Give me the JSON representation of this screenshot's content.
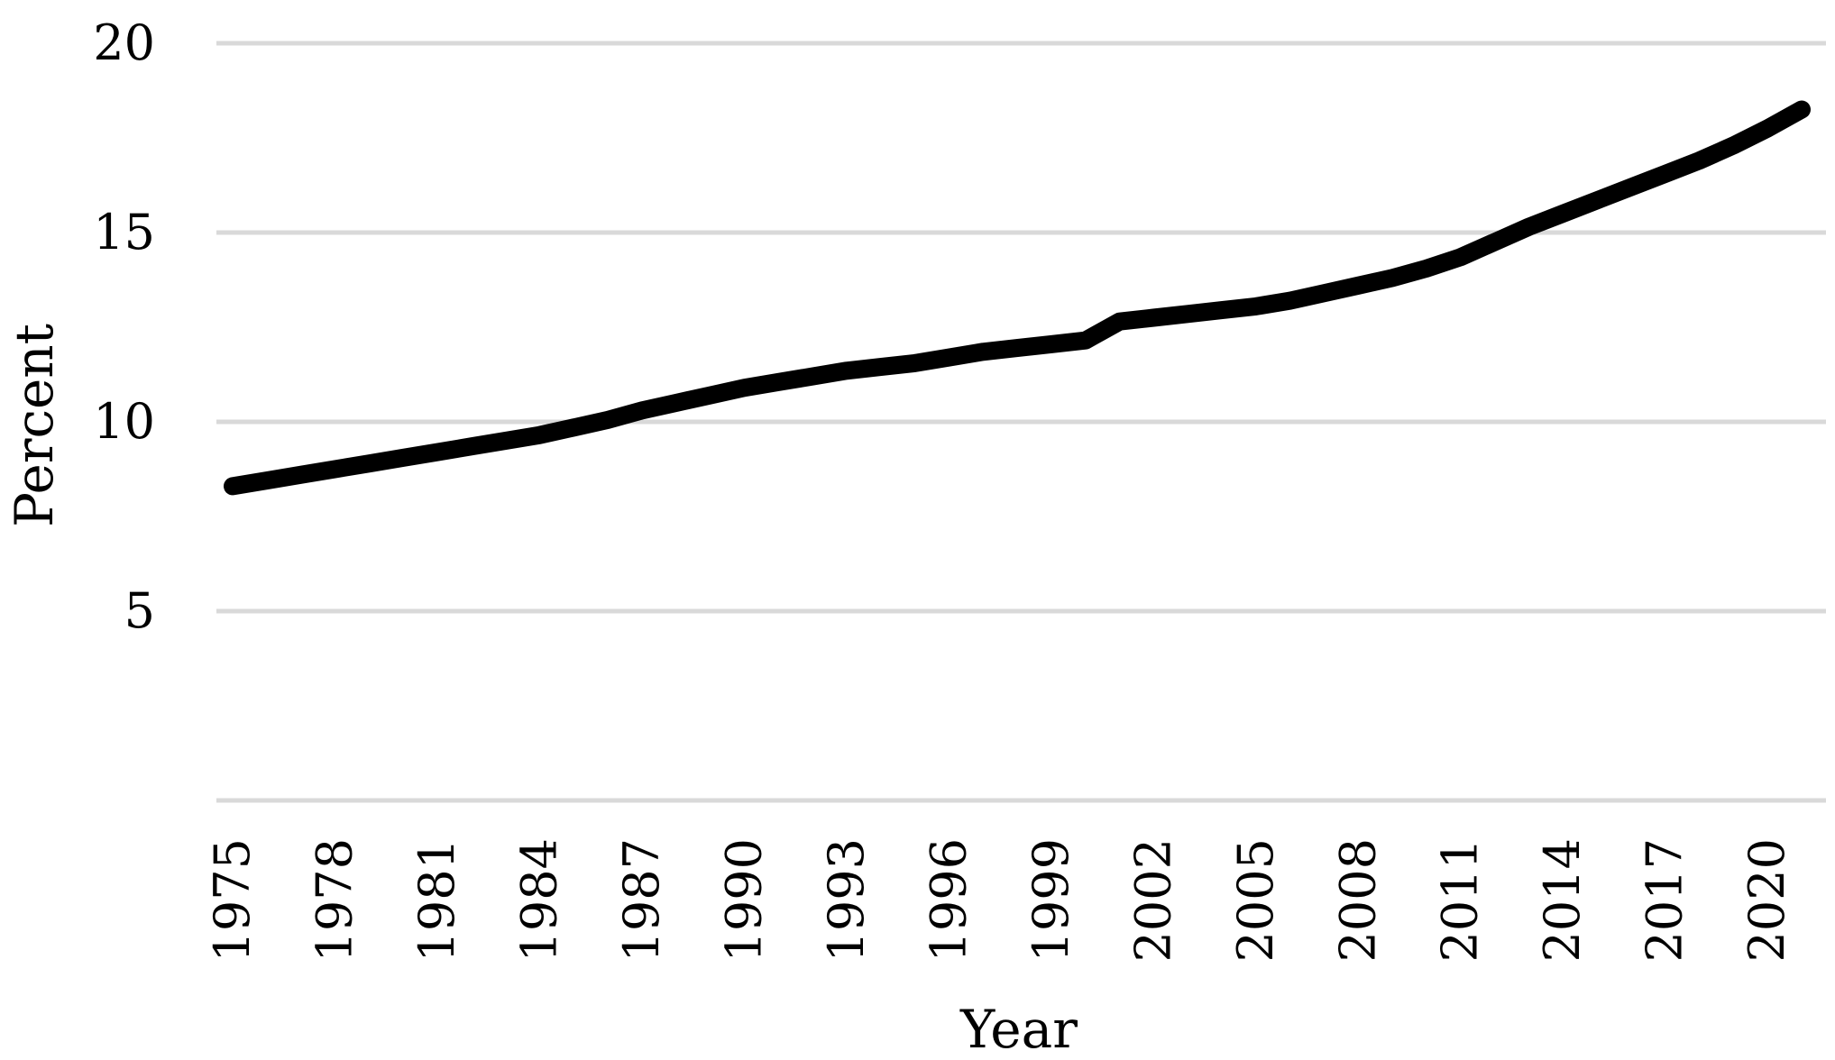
{
  "chart_data": {
    "type": "line",
    "title": "",
    "xlabel": "Year",
    "ylabel": "Percent",
    "ylim": [
      0,
      20
    ],
    "yticks": [
      5,
      10,
      15,
      20
    ],
    "xlim": [
      1975,
      2021
    ],
    "xtick_labels": [
      "1975",
      "1978",
      "1981",
      "1984",
      "1987",
      "1990",
      "1993",
      "1996",
      "1999",
      "2002",
      "2005",
      "2008",
      "2011",
      "2014",
      "2017",
      "2020"
    ],
    "grid": true,
    "legend": "none",
    "series": [
      {
        "color": "#000000",
        "x": [
          1975,
          1976,
          1977,
          1978,
          1979,
          1980,
          1981,
          1982,
          1983,
          1984,
          1985,
          1986,
          1987,
          1988,
          1989,
          1990,
          1991,
          1992,
          1993,
          1994,
          1995,
          1996,
          1997,
          1998,
          1999,
          2000,
          2001,
          2002,
          2003,
          2004,
          2005,
          2006,
          2007,
          2008,
          2009,
          2010,
          2011,
          2012,
          2013,
          2014,
          2015,
          2016,
          2017,
          2018,
          2019,
          2020,
          2021
        ],
        "y": [
          8.3,
          8.45,
          8.6,
          8.75,
          8.9,
          9.05,
          9.2,
          9.35,
          9.5,
          9.65,
          9.85,
          10.05,
          10.3,
          10.5,
          10.7,
          10.9,
          11.05,
          11.2,
          11.35,
          11.45,
          11.55,
          11.7,
          11.85,
          11.95,
          12.05,
          12.15,
          12.65,
          12.75,
          12.85,
          12.95,
          13.05,
          13.2,
          13.4,
          13.6,
          13.8,
          14.05,
          14.35,
          14.75,
          15.15,
          15.5,
          15.85,
          16.2,
          16.55,
          16.9,
          17.3,
          17.75,
          18.25
        ]
      }
    ]
  }
}
